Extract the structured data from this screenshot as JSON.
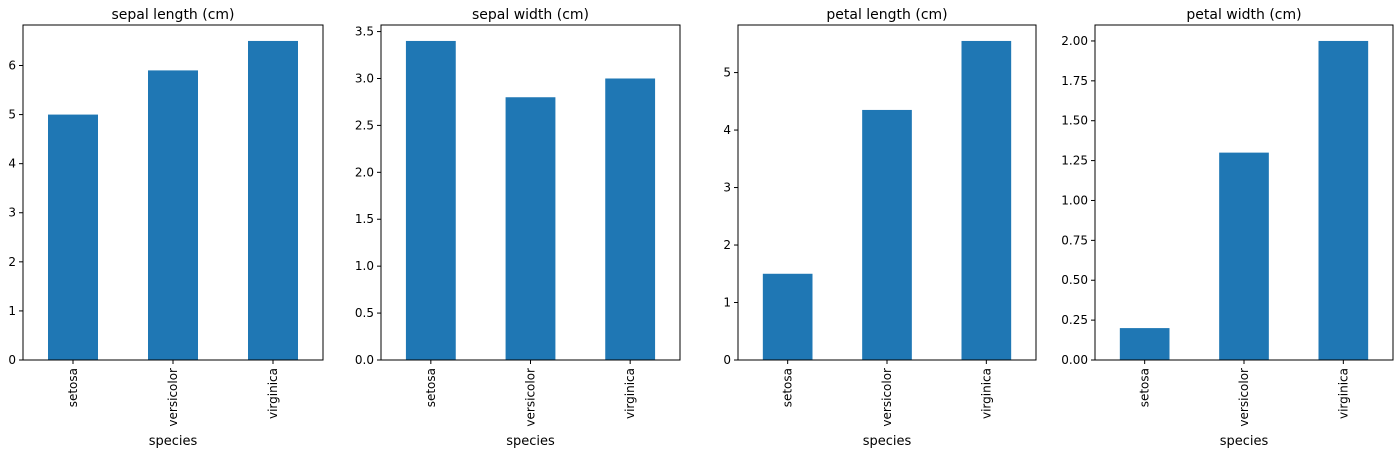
{
  "chart_data": [
    {
      "type": "bar",
      "title": "sepal length (cm)",
      "xlabel": "species",
      "ylabel": "",
      "categories": [
        "setosa",
        "versicolor",
        "virginica"
      ],
      "values": [
        5.0,
        5.9,
        6.5
      ],
      "ylim": [
        0,
        6.825
      ],
      "yticks": [
        0,
        1,
        2,
        3,
        4,
        5,
        6
      ],
      "ytick_labels": [
        "0",
        "1",
        "2",
        "3",
        "4",
        "5",
        "6"
      ],
      "grid": false,
      "bar_color": "#1f77b4"
    },
    {
      "type": "bar",
      "title": "sepal width (cm)",
      "xlabel": "species",
      "ylabel": "",
      "categories": [
        "setosa",
        "versicolor",
        "virginica"
      ],
      "values": [
        3.4,
        2.8,
        3.0
      ],
      "ylim": [
        0,
        3.57
      ],
      "yticks": [
        0,
        0.5,
        1.0,
        1.5,
        2.0,
        2.5,
        3.0,
        3.5
      ],
      "ytick_labels": [
        "0.0",
        "0.5",
        "1.0",
        "1.5",
        "2.0",
        "2.5",
        "3.0",
        "3.5"
      ],
      "grid": false,
      "bar_color": "#1f77b4"
    },
    {
      "type": "bar",
      "title": "petal length (cm)",
      "xlabel": "species",
      "ylabel": "",
      "categories": [
        "setosa",
        "versicolor",
        "virginica"
      ],
      "values": [
        1.5,
        4.35,
        5.55
      ],
      "ylim": [
        0,
        5.8275
      ],
      "yticks": [
        0,
        1,
        2,
        3,
        4,
        5
      ],
      "ytick_labels": [
        "0",
        "1",
        "2",
        "3",
        "4",
        "5"
      ],
      "grid": false,
      "bar_color": "#1f77b4"
    },
    {
      "type": "bar",
      "title": "petal width (cm)",
      "xlabel": "species",
      "ylabel": "",
      "categories": [
        "setosa",
        "versicolor",
        "virginica"
      ],
      "values": [
        0.2,
        1.3,
        2.0
      ],
      "ylim": [
        0,
        2.1
      ],
      "yticks": [
        0,
        0.25,
        0.5,
        0.75,
        1.0,
        1.25,
        1.5,
        1.75,
        2.0
      ],
      "ytick_labels": [
        "0.00",
        "0.25",
        "0.50",
        "0.75",
        "1.00",
        "1.25",
        "1.50",
        "1.75",
        "2.00"
      ],
      "grid": false,
      "bar_color": "#1f77b4"
    }
  ]
}
